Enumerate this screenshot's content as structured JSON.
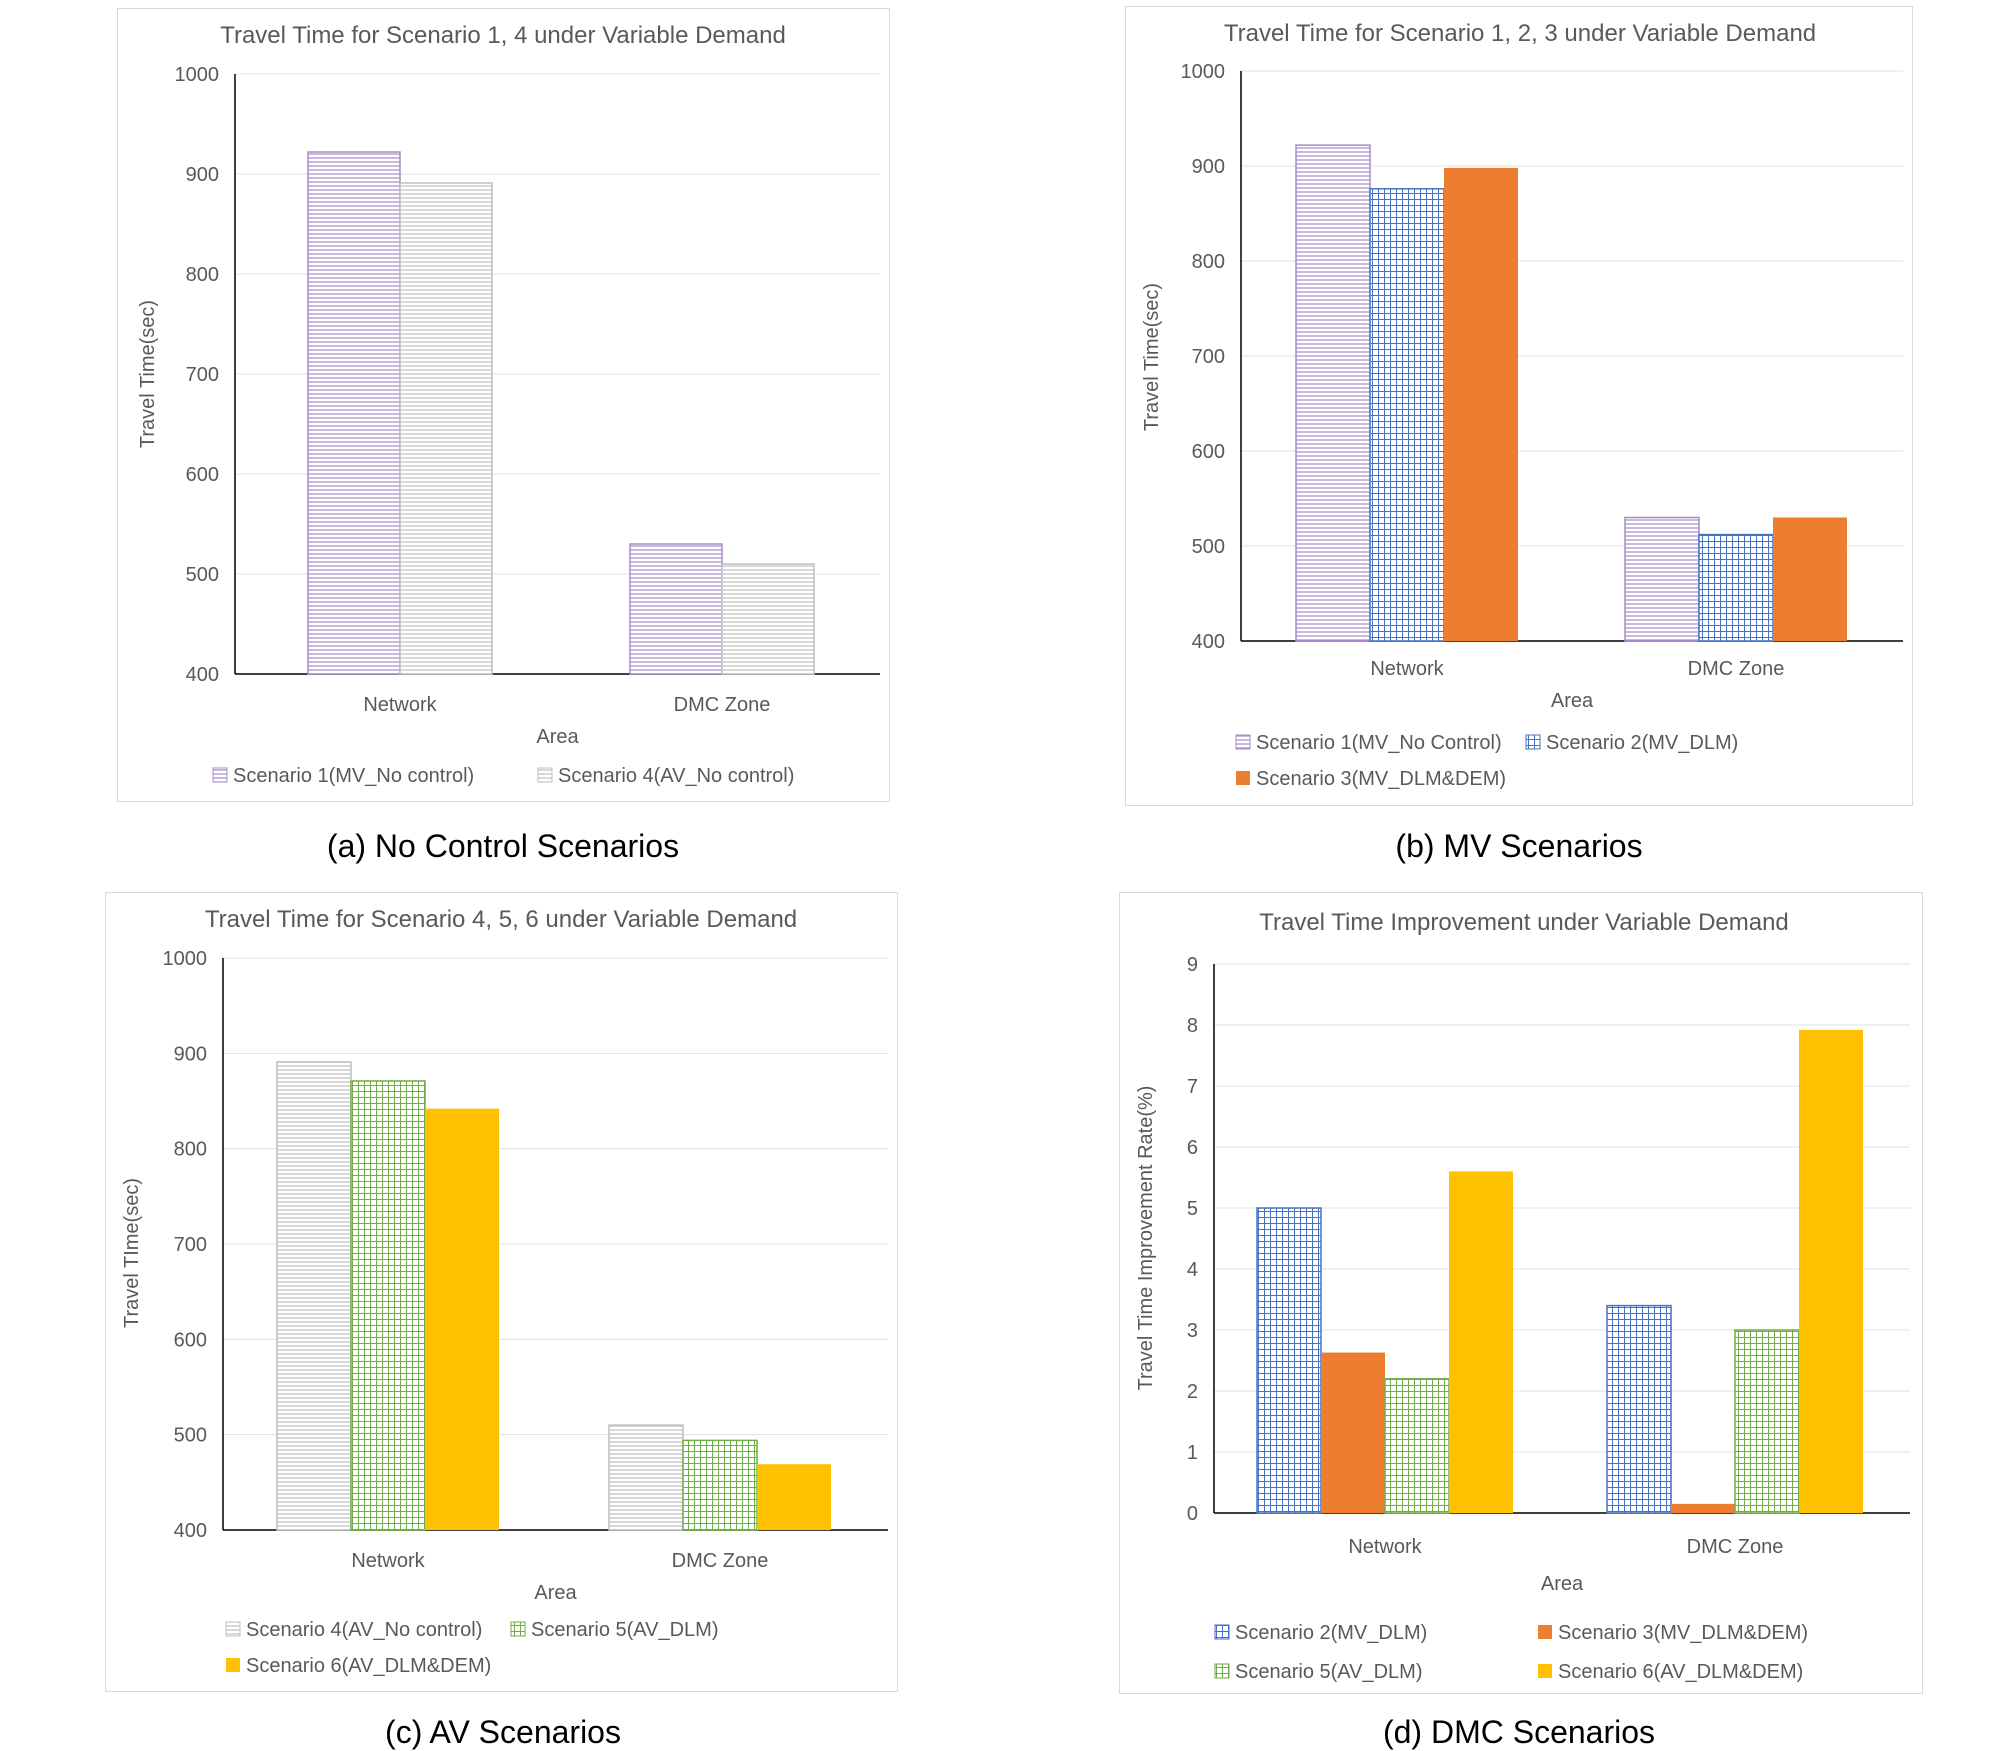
{
  "patterns": {
    "purple_h": {
      "color": "#a78bc9",
      "style": "hlines"
    },
    "gray_h": {
      "color": "#bfbfbf",
      "style": "hlines"
    },
    "blue_grid": {
      "color": "#4472c4",
      "style": "grid"
    },
    "green_grid": {
      "color": "#70ad47",
      "style": "grid"
    },
    "orange": {
      "color": "#ed7d31",
      "style": "solid"
    },
    "yellow": {
      "color": "#ffc000",
      "style": "solid"
    }
  },
  "captions": {
    "a": "(a) No Control Scenarios",
    "b": "(b) MV Scenarios",
    "c": "(c) AV Scenarios",
    "d": "(d) DMC Scenarios"
  },
  "chart_data": [
    {
      "id": "a",
      "type": "bar",
      "title": "Travel Time for Scenario 1, 4 under Variable Demand",
      "xlabel": "Area",
      "ylabel": "Travel Time(sec)",
      "ylim": [
        400,
        1000
      ],
      "yticks": [
        400,
        500,
        600,
        700,
        800,
        900,
        1000
      ],
      "categories": [
        "Network",
        "DMC Zone"
      ],
      "series": [
        {
          "name": "Scenario 1(MV_No control)",
          "pattern": "purple_h",
          "values": [
            922,
            530
          ]
        },
        {
          "name": "Scenario 4(AV_No control)",
          "pattern": "gray_h",
          "values": [
            891,
            510
          ]
        }
      ]
    },
    {
      "id": "b",
      "type": "bar",
      "title": "Travel Time for Scenario 1, 2, 3 under Variable Demand",
      "xlabel": "Area",
      "ylabel": "Travel Time(sec)",
      "ylim": [
        400,
        1000
      ],
      "yticks": [
        400,
        500,
        600,
        700,
        800,
        900,
        1000
      ],
      "categories": [
        "Network",
        "DMC Zone"
      ],
      "series": [
        {
          "name": "Scenario 1(MV_No Control)",
          "pattern": "purple_h",
          "values": [
            922,
            530
          ]
        },
        {
          "name": "Scenario 2(MV_DLM)",
          "pattern": "blue_grid",
          "values": [
            876,
            512
          ]
        },
        {
          "name": "Scenario 3(MV_DLM&DEM)",
          "pattern": "orange",
          "values": [
            898,
            530
          ]
        }
      ]
    },
    {
      "id": "c",
      "type": "bar",
      "title": "Travel Time for Scenario 4, 5, 6 under Variable Demand",
      "xlabel": "Area",
      "ylabel": "Travel TIme(sec)",
      "ylim": [
        400,
        1000
      ],
      "yticks": [
        400,
        500,
        600,
        700,
        800,
        900,
        1000
      ],
      "categories": [
        "Network",
        "DMC Zone"
      ],
      "series": [
        {
          "name": "Scenario 4(AV_No control)",
          "pattern": "gray_h",
          "values": [
            891,
            510
          ]
        },
        {
          "name": "Scenario 5(AV_DLM)",
          "pattern": "green_grid",
          "values": [
            871,
            494
          ]
        },
        {
          "name": "Scenario 6(AV_DLM&DEM)",
          "pattern": "yellow",
          "values": [
            842,
            469
          ]
        }
      ]
    },
    {
      "id": "d",
      "type": "bar",
      "title": "Travel Time Improvement under Variable Demand",
      "xlabel": "Area",
      "ylabel": "Travel Time Improvement Rate(%)",
      "ylim": [
        0,
        9
      ],
      "yticks": [
        0,
        1,
        2,
        3,
        4,
        5,
        6,
        7,
        8,
        9
      ],
      "categories": [
        "Network",
        "DMC Zone"
      ],
      "series": [
        {
          "name": "Scenario 2(MV_DLM)",
          "pattern": "blue_grid",
          "values": [
            5.0,
            3.4
          ]
        },
        {
          "name": "Scenario 3(MV_DLM&DEM)",
          "pattern": "orange",
          "values": [
            2.63,
            0.15
          ]
        },
        {
          "name": "Scenario 5(AV_DLM)",
          "pattern": "green_grid",
          "values": [
            2.2,
            3.0
          ]
        },
        {
          "name": "Scenario 6(AV_DLM&DEM)",
          "pattern": "yellow",
          "values": [
            5.6,
            7.92
          ]
        }
      ]
    }
  ]
}
